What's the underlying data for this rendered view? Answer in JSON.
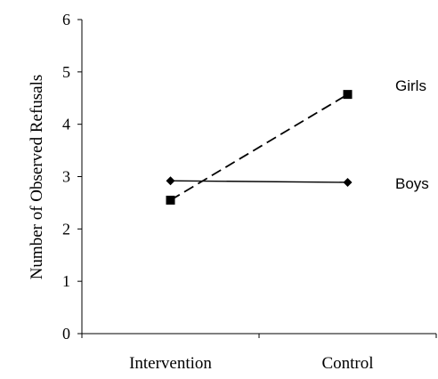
{
  "chart_data": {
    "type": "line",
    "title": "",
    "xlabel": "",
    "ylabel": "Number of Observed Refusals",
    "categories": [
      "Intervention",
      "Control"
    ],
    "ylim": [
      0,
      6
    ],
    "yticks": [
      "0",
      "1",
      "2",
      "3",
      "4",
      "5",
      "6"
    ],
    "grid": false,
    "legend": "series labels at right end of lines",
    "series": [
      {
        "name": "Girls",
        "values": [
          2.55,
          4.57
        ],
        "marker": "square",
        "line_style": "dashed",
        "color": "#000000"
      },
      {
        "name": "Boys",
        "values": [
          2.92,
          2.89
        ],
        "marker": "diamond",
        "line_style": "solid",
        "color": "#000000"
      }
    ]
  }
}
